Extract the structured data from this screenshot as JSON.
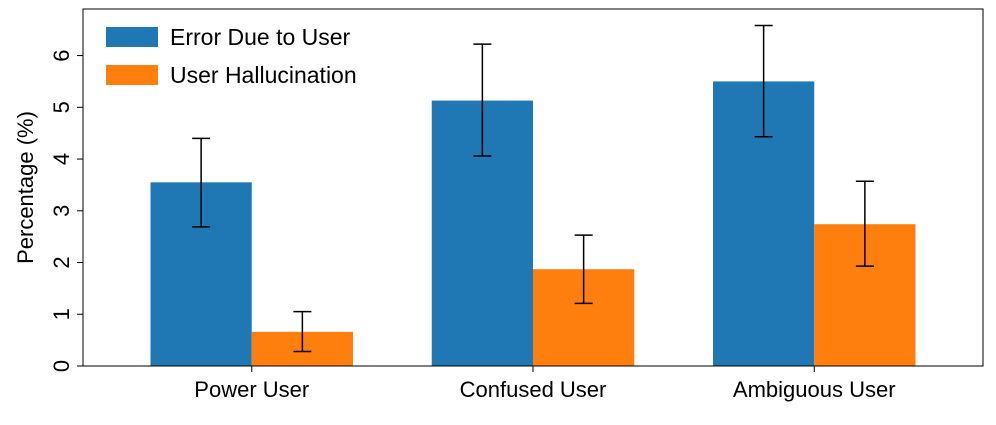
{
  "chart_data": {
    "type": "bar",
    "categories": [
      "Power User",
      "Confused User",
      "Ambiguous User"
    ],
    "series": [
      {
        "name": "Error Due to User",
        "color": "#1f77b4",
        "values": [
          3.55,
          5.13,
          5.5
        ],
        "err_low": [
          2.69,
          4.06,
          4.43
        ],
        "err_high": [
          4.4,
          6.22,
          6.58
        ]
      },
      {
        "name": "User Hallucination",
        "color": "#ff7f0e",
        "values": [
          0.66,
          1.87,
          2.74
        ],
        "err_low": [
          0.28,
          1.21,
          1.93
        ],
        "err_high": [
          1.05,
          2.53,
          3.57
        ]
      }
    ],
    "xlabel": "",
    "ylabel": "Percentage (%)",
    "ylim": [
      0,
      6.9
    ],
    "yticks": [
      0,
      1,
      2,
      3,
      4,
      5,
      6
    ],
    "grid": false,
    "legend": "top-left"
  }
}
